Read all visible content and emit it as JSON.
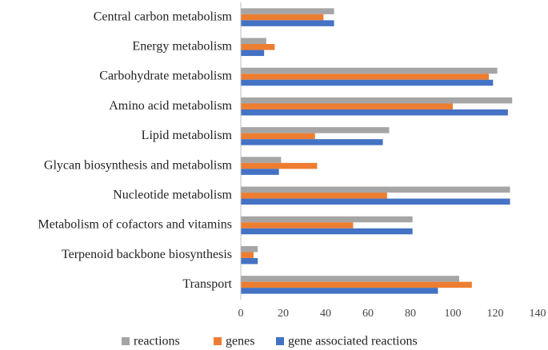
{
  "chart_data": {
    "type": "hbar",
    "categories": [
      "Central carbon metabolism",
      "Energy metabolism",
      "Carbohydrate metabolism",
      "Amino acid metabolism",
      "Lipid metabolism",
      "Glycan biosynthesis and metabolism",
      "Nucleotide metabolism",
      "Metabolism of cofactors and vitamins",
      "Terpenoid backbone biosynthesis",
      "Transport"
    ],
    "series": [
      {
        "name": "reactions",
        "color": "#a5a5a5",
        "values": [
          44,
          12,
          121,
          128,
          70,
          19,
          127,
          81,
          8,
          103
        ]
      },
      {
        "name": "genes",
        "color": "#ed7d31",
        "values": [
          39,
          16,
          117,
          100,
          35,
          36,
          69,
          53,
          6,
          109
        ]
      },
      {
        "name": "gene associated reactions",
        "color": "#4472c4",
        "values": [
          44,
          11,
          119,
          126,
          67,
          18,
          127,
          81,
          8,
          93
        ]
      }
    ],
    "xlim": [
      0,
      140
    ],
    "xticks": [
      0,
      20,
      40,
      60,
      80,
      100,
      120,
      140
    ],
    "legend": "bottom",
    "grid": false
  }
}
